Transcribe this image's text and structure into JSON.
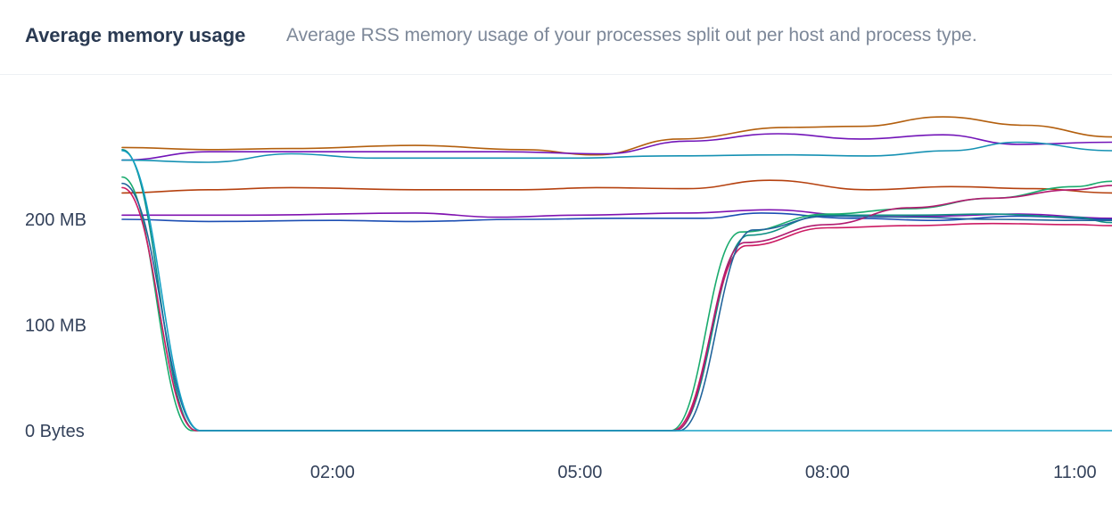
{
  "header": {
    "title": "Average memory usage",
    "subtitle": "Average RSS memory usage of your processes split out per host and process type."
  },
  "chart_data": {
    "type": "line",
    "title": "Average memory usage",
    "subtitle": "Average RSS memory usage of your processes split out per host and process type.",
    "xlabel": "",
    "ylabel": "",
    "x_unit": "hours",
    "x_range": [
      -0.55,
      11.45
    ],
    "x_ticks": [
      {
        "value": 2,
        "label": "02:00"
      },
      {
        "value": 5,
        "label": "05:00"
      },
      {
        "value": 8,
        "label": "08:00"
      },
      {
        "value": 11,
        "label": "11:00"
      }
    ],
    "y_unit": "MB",
    "ylim": [
      0,
      315
    ],
    "y_ticks": [
      {
        "value": 0,
        "label": "0 Bytes"
      },
      {
        "value": 100,
        "label": "100 MB"
      },
      {
        "value": 200,
        "label": "200 MB"
      }
    ],
    "grid": false,
    "legend": "none",
    "series": [
      {
        "color": "#b35f0e",
        "points": [
          [
            -0.55,
            268
          ],
          [
            0.5,
            266
          ],
          [
            1.5,
            267
          ],
          [
            3,
            270
          ],
          [
            4.3,
            266
          ],
          [
            5.2,
            261
          ],
          [
            6.2,
            276
          ],
          [
            7.5,
            287
          ],
          [
            8.4,
            288
          ],
          [
            9.4,
            297
          ],
          [
            10.4,
            289
          ],
          [
            11.45,
            278
          ]
        ]
      },
      {
        "color": "#7214b8",
        "points": [
          [
            -0.55,
            256
          ],
          [
            0.5,
            264
          ],
          [
            2,
            264
          ],
          [
            3,
            264
          ],
          [
            4,
            264
          ],
          [
            5.3,
            262
          ],
          [
            6.3,
            274
          ],
          [
            7.4,
            281
          ],
          [
            8.4,
            276
          ],
          [
            9.4,
            280
          ],
          [
            10.3,
            271
          ],
          [
            11.45,
            273
          ]
        ]
      },
      {
        "color": "#1591b3",
        "points": [
          [
            -0.55,
            256
          ],
          [
            0.5,
            254
          ],
          [
            1.5,
            262
          ],
          [
            2.5,
            258
          ],
          [
            4,
            258
          ],
          [
            5,
            258
          ],
          [
            6,
            260
          ],
          [
            7.5,
            261
          ],
          [
            8.5,
            260
          ],
          [
            9.5,
            265
          ],
          [
            10.3,
            273
          ],
          [
            11.45,
            265
          ]
        ]
      },
      {
        "color": "#b5410f",
        "points": [
          [
            -0.55,
            225
          ],
          [
            0.5,
            228
          ],
          [
            1.5,
            230
          ],
          [
            3,
            228
          ],
          [
            4.3,
            228
          ],
          [
            5.2,
            230
          ],
          [
            6.3,
            229
          ],
          [
            7.3,
            237
          ],
          [
            8.5,
            228
          ],
          [
            9.5,
            231
          ],
          [
            10.5,
            229
          ],
          [
            11.45,
            225
          ]
        ]
      },
      {
        "color": "#8012b0",
        "points": [
          [
            -0.55,
            204
          ],
          [
            1,
            204
          ],
          [
            3,
            206
          ],
          [
            4,
            202
          ],
          [
            5,
            204
          ],
          [
            6.3,
            206
          ],
          [
            7.3,
            209
          ],
          [
            8.3,
            204
          ],
          [
            9.3,
            203
          ],
          [
            10.3,
            205
          ],
          [
            11.45,
            201
          ]
        ]
      },
      {
        "color": "#1c4eb3",
        "points": [
          [
            -0.55,
            200
          ],
          [
            0.5,
            198
          ],
          [
            2,
            199
          ],
          [
            3,
            198
          ],
          [
            4.3,
            200
          ],
          [
            5.5,
            201
          ],
          [
            6.5,
            201
          ],
          [
            7.2,
            206
          ],
          [
            8.3,
            201
          ],
          [
            9.3,
            199
          ],
          [
            10.3,
            203
          ],
          [
            11.45,
            200
          ]
        ]
      },
      {
        "color": "#0e8f83",
        "points": [
          [
            -0.55,
            266
          ],
          [
            0.35,
            0
          ],
          [
            6.15,
            0
          ],
          [
            7.05,
            185
          ],
          [
            8,
            204
          ],
          [
            9,
            204
          ],
          [
            10,
            205
          ],
          [
            11,
            202
          ],
          [
            11.45,
            197
          ]
        ]
      },
      {
        "color": "#1aab6e",
        "points": [
          [
            -0.55,
            240
          ],
          [
            0.3,
            0
          ],
          [
            6.1,
            0
          ],
          [
            6.95,
            188
          ],
          [
            8,
            205
          ],
          [
            9,
            210
          ],
          [
            10,
            220
          ],
          [
            11,
            231
          ],
          [
            11.45,
            236
          ]
        ]
      },
      {
        "color": "#cc1b63",
        "points": [
          [
            -0.55,
            230
          ],
          [
            0.35,
            0
          ],
          [
            6.12,
            0
          ],
          [
            7.02,
            175
          ],
          [
            8,
            192
          ],
          [
            9,
            194
          ],
          [
            10,
            196
          ],
          [
            11,
            195
          ],
          [
            11.45,
            194
          ]
        ]
      },
      {
        "color": "#b21a6f",
        "points": [
          [
            6.15,
            0
          ],
          [
            7,
            178
          ],
          [
            8,
            195
          ],
          [
            9,
            211
          ],
          [
            10,
            220
          ],
          [
            11,
            228
          ],
          [
            11.45,
            232
          ]
        ]
      },
      {
        "color": "#21649c",
        "points": [
          [
            -0.55,
            234
          ],
          [
            0.4,
            0
          ],
          [
            6.2,
            0
          ],
          [
            7.1,
            190
          ],
          [
            8,
            203
          ],
          [
            9,
            202
          ],
          [
            10,
            200
          ],
          [
            11,
            199
          ],
          [
            11.45,
            199
          ]
        ]
      },
      {
        "color": "#15a1c5",
        "points": [
          [
            -0.55,
            265
          ],
          [
            0.4,
            0
          ],
          [
            11.45,
            0
          ]
        ]
      }
    ]
  }
}
